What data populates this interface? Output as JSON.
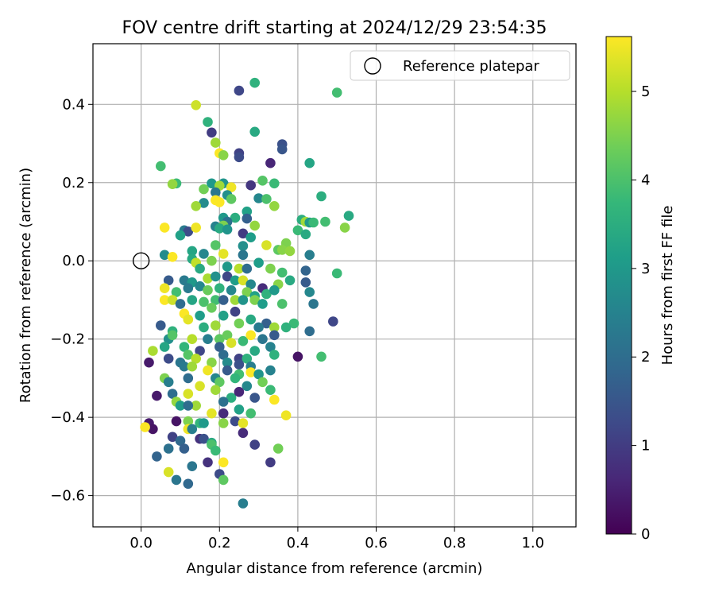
{
  "chart_data": {
    "type": "scatter",
    "title": "FOV centre drift starting at 2024/12/29 23:54:35",
    "xlabel": "Angular distance from reference (arcmin)",
    "ylabel": "Rotation from reference (arcmin)",
    "xlim": [
      -0.123,
      1.11
    ],
    "ylim": [
      -0.68,
      0.555
    ],
    "x_ticks": [
      0.0,
      0.2,
      0.4,
      0.6,
      0.8,
      1.0
    ],
    "x_tick_labels": [
      "0.0",
      "0.2",
      "0.4",
      "0.6",
      "0.8",
      "1.0"
    ],
    "y_ticks": [
      0.4,
      0.2,
      0.0,
      -0.2,
      -0.4,
      -0.6
    ],
    "y_tick_labels": [
      "0.4",
      "0.2",
      "0.0",
      "−0.2",
      "−0.4",
      "−0.6"
    ],
    "grid": true,
    "legend": {
      "placement": "top-right",
      "entries": [
        "Reference platepar"
      ]
    },
    "reference_point": {
      "x": 0.0,
      "y": 0.0,
      "label": "Reference platepar"
    },
    "colorbar": {
      "label": "Hours from first FF file",
      "min": 0,
      "max": 5.62,
      "ticks": [
        0,
        1,
        2,
        3,
        4,
        5
      ],
      "tick_labels": [
        "0",
        "1",
        "2",
        "3",
        "4",
        "5"
      ],
      "colormap": "viridis"
    },
    "points": [
      [
        0.25,
        0.435,
        1.2
      ],
      [
        0.29,
        0.455,
        3.6
      ],
      [
        0.5,
        0.43,
        3.9
      ],
      [
        0.14,
        0.398,
        5.2
      ],
      [
        0.17,
        0.355,
        3.6
      ],
      [
        0.18,
        0.328,
        1.0
      ],
      [
        0.29,
        0.33,
        3.4
      ],
      [
        0.36,
        0.298,
        1.4
      ],
      [
        0.19,
        0.302,
        4.8
      ],
      [
        0.36,
        0.285,
        1.5
      ],
      [
        0.25,
        0.275,
        1.1
      ],
      [
        0.2,
        0.275,
        5.6
      ],
      [
        0.25,
        0.265,
        1.3
      ],
      [
        0.21,
        0.27,
        4.6
      ],
      [
        0.33,
        0.25,
        0.6
      ],
      [
        0.43,
        0.25,
        3.3
      ],
      [
        0.05,
        0.242,
        3.9
      ],
      [
        0.09,
        0.198,
        3.8
      ],
      [
        0.08,
        0.196,
        4.7
      ],
      [
        0.18,
        0.198,
        3.0
      ],
      [
        0.21,
        0.198,
        2.9
      ],
      [
        0.31,
        0.205,
        4.1
      ],
      [
        0.34,
        0.198,
        3.8
      ],
      [
        0.2,
        0.192,
        4.8
      ],
      [
        0.23,
        0.188,
        5.5
      ],
      [
        0.28,
        0.193,
        0.9
      ],
      [
        0.16,
        0.183,
        4.4
      ],
      [
        0.19,
        0.175,
        2.2
      ],
      [
        0.22,
        0.168,
        2.8
      ],
      [
        0.3,
        0.16,
        2.6
      ],
      [
        0.23,
        0.158,
        4.2
      ],
      [
        0.32,
        0.158,
        4.0
      ],
      [
        0.46,
        0.165,
        3.5
      ],
      [
        0.19,
        0.155,
        5.6
      ],
      [
        0.2,
        0.15,
        5.6
      ],
      [
        0.16,
        0.148,
        2.7
      ],
      [
        0.14,
        0.14,
        4.8
      ],
      [
        0.34,
        0.14,
        4.7
      ],
      [
        0.27,
        0.126,
        3.2
      ],
      [
        0.21,
        0.11,
        3.0
      ],
      [
        0.24,
        0.11,
        3.5
      ],
      [
        0.27,
        0.108,
        1.7
      ],
      [
        0.22,
        0.1,
        2.1
      ],
      [
        0.41,
        0.105,
        3.5
      ],
      [
        0.42,
        0.1,
        4.8
      ],
      [
        0.43,
        0.098,
        3.0
      ],
      [
        0.44,
        0.098,
        3.8
      ],
      [
        0.47,
        0.1,
        3.9
      ],
      [
        0.53,
        0.115,
        3.4
      ],
      [
        0.06,
        0.085,
        5.6
      ],
      [
        0.19,
        0.088,
        2.5
      ],
      [
        0.21,
        0.09,
        4.5
      ],
      [
        0.29,
        0.09,
        4.7
      ],
      [
        0.11,
        0.078,
        2.3
      ],
      [
        0.12,
        0.075,
        1.3
      ],
      [
        0.14,
        0.085,
        5.5
      ],
      [
        0.2,
        0.083,
        3.4
      ],
      [
        0.22,
        0.08,
        2.9
      ],
      [
        0.4,
        0.078,
        3.8
      ],
      [
        0.52,
        0.085,
        4.6
      ],
      [
        0.1,
        0.065,
        3.2
      ],
      [
        0.26,
        0.07,
        1.0
      ],
      [
        0.28,
        0.06,
        3.1
      ],
      [
        0.42,
        0.068,
        3.4
      ],
      [
        0.37,
        0.045,
        4.5
      ],
      [
        0.19,
        0.04,
        4.1
      ],
      [
        0.26,
        0.038,
        2.8
      ],
      [
        0.32,
        0.04,
        5.3
      ],
      [
        0.06,
        0.015,
        2.7
      ],
      [
        0.13,
        0.025,
        3.3
      ],
      [
        0.16,
        0.018,
        2.6
      ],
      [
        0.21,
        0.018,
        5.4
      ],
      [
        0.26,
        0.015,
        2.2
      ],
      [
        0.35,
        0.028,
        4.2
      ],
      [
        0.36,
        0.028,
        4.6
      ],
      [
        0.38,
        0.025,
        4.7
      ],
      [
        0.43,
        0.015,
        2.4
      ],
      [
        0.08,
        0.01,
        5.6
      ],
      [
        0.13,
        0.005,
        3.4
      ],
      [
        0.18,
        0.0,
        4.5
      ],
      [
        0.14,
        -0.005,
        5.1
      ],
      [
        0.3,
        -0.005,
        3.1
      ],
      [
        0.15,
        -0.02,
        3.4
      ],
      [
        0.22,
        -0.015,
        3.0
      ],
      [
        0.25,
        -0.02,
        5.0
      ],
      [
        0.27,
        -0.02,
        2.0
      ],
      [
        0.33,
        -0.02,
        4.5
      ],
      [
        0.36,
        -0.03,
        3.9
      ],
      [
        0.42,
        -0.025,
        1.8
      ],
      [
        0.5,
        -0.032,
        3.8
      ],
      [
        0.07,
        -0.05,
        1.6
      ],
      [
        0.11,
        -0.05,
        2.3
      ],
      [
        0.13,
        -0.055,
        3.0
      ],
      [
        0.17,
        -0.045,
        4.9
      ],
      [
        0.19,
        -0.04,
        2.8
      ],
      [
        0.22,
        -0.04,
        1.2
      ],
      [
        0.24,
        -0.05,
        3.1
      ],
      [
        0.26,
        -0.05,
        5.3
      ],
      [
        0.28,
        -0.06,
        2.6
      ],
      [
        0.31,
        -0.07,
        0.7
      ],
      [
        0.35,
        -0.06,
        4.6
      ],
      [
        0.38,
        -0.05,
        3.4
      ],
      [
        0.42,
        -0.055,
        1.6
      ],
      [
        0.06,
        -0.07,
        5.5
      ],
      [
        0.09,
        -0.08,
        3.9
      ],
      [
        0.12,
        -0.07,
        2.3
      ],
      [
        0.15,
        -0.065,
        2.6
      ],
      [
        0.17,
        -0.075,
        4.3
      ],
      [
        0.2,
        -0.07,
        3.6
      ],
      [
        0.23,
        -0.075,
        2.6
      ],
      [
        0.27,
        -0.08,
        4.5
      ],
      [
        0.29,
        -0.09,
        3.2
      ],
      [
        0.32,
        -0.085,
        3.6
      ],
      [
        0.34,
        -0.075,
        3.0
      ],
      [
        0.43,
        -0.08,
        2.6
      ],
      [
        0.06,
        -0.1,
        5.6
      ],
      [
        0.08,
        -0.1,
        5.2
      ],
      [
        0.1,
        -0.11,
        2.0
      ],
      [
        0.13,
        -0.1,
        3.3
      ],
      [
        0.16,
        -0.105,
        4.0
      ],
      [
        0.19,
        -0.1,
        3.9
      ],
      [
        0.21,
        -0.1,
        1.7
      ],
      [
        0.24,
        -0.1,
        4.8
      ],
      [
        0.26,
        -0.1,
        2.9
      ],
      [
        0.29,
        -0.1,
        4.5
      ],
      [
        0.31,
        -0.11,
        3.1
      ],
      [
        0.36,
        -0.11,
        4.0
      ],
      [
        0.44,
        -0.11,
        2.2
      ],
      [
        0.11,
        -0.135,
        5.6
      ],
      [
        0.12,
        -0.15,
        5.4
      ],
      [
        0.15,
        -0.14,
        3.1
      ],
      [
        0.18,
        -0.12,
        4.3
      ],
      [
        0.21,
        -0.14,
        3.2
      ],
      [
        0.24,
        -0.13,
        1.1
      ],
      [
        0.28,
        -0.15,
        3.4
      ],
      [
        0.32,
        -0.16,
        1.7
      ],
      [
        0.34,
        -0.17,
        4.8
      ],
      [
        0.39,
        -0.16,
        3.8
      ],
      [
        0.49,
        -0.155,
        1.2
      ],
      [
        0.05,
        -0.165,
        1.6
      ],
      [
        0.08,
        -0.18,
        3.6
      ],
      [
        0.16,
        -0.17,
        3.5
      ],
      [
        0.19,
        -0.165,
        4.8
      ],
      [
        0.25,
        -0.16,
        4.4
      ],
      [
        0.3,
        -0.17,
        2.3
      ],
      [
        0.37,
        -0.17,
        3.6
      ],
      [
        0.43,
        -0.18,
        2.0
      ],
      [
        0.07,
        -0.2,
        2.8
      ],
      [
        0.08,
        -0.19,
        4.1
      ],
      [
        0.13,
        -0.2,
        5.0
      ],
      [
        0.17,
        -0.2,
        2.4
      ],
      [
        0.2,
        -0.2,
        4.2
      ],
      [
        0.22,
        -0.19,
        4.3
      ],
      [
        0.26,
        -0.205,
        3.8
      ],
      [
        0.28,
        -0.19,
        5.6
      ],
      [
        0.31,
        -0.2,
        2.2
      ],
      [
        0.34,
        -0.19,
        1.6
      ],
      [
        0.06,
        -0.22,
        3.3
      ],
      [
        0.11,
        -0.22,
        3.7
      ],
      [
        0.15,
        -0.23,
        1.2
      ],
      [
        0.2,
        -0.22,
        1.7
      ],
      [
        0.23,
        -0.21,
        5.3
      ],
      [
        0.29,
        -0.23,
        3.4
      ],
      [
        0.33,
        -0.22,
        2.5
      ],
      [
        0.03,
        -0.23,
        4.9
      ],
      [
        0.12,
        -0.24,
        4.1
      ],
      [
        0.21,
        -0.24,
        2.0
      ],
      [
        0.25,
        -0.25,
        1.1
      ],
      [
        0.27,
        -0.25,
        3.6
      ],
      [
        0.34,
        -0.24,
        3.6
      ],
      [
        0.4,
        -0.245,
        0.3
      ],
      [
        0.46,
        -0.245,
        3.9
      ],
      [
        0.02,
        -0.26,
        0.4
      ],
      [
        0.07,
        -0.25,
        1.3
      ],
      [
        0.1,
        -0.26,
        2.2
      ],
      [
        0.14,
        -0.25,
        5.0
      ],
      [
        0.18,
        -0.26,
        4.6
      ],
      [
        0.22,
        -0.26,
        2.7
      ],
      [
        0.25,
        -0.265,
        1.4
      ],
      [
        0.28,
        -0.27,
        2.4
      ],
      [
        0.06,
        -0.3,
        4.5
      ],
      [
        0.11,
        -0.27,
        2.3
      ],
      [
        0.13,
        -0.27,
        4.8
      ],
      [
        0.17,
        -0.28,
        5.5
      ],
      [
        0.19,
        -0.3,
        2.6
      ],
      [
        0.22,
        -0.28,
        1.6
      ],
      [
        0.25,
        -0.29,
        3.9
      ],
      [
        0.28,
        -0.285,
        5.6
      ],
      [
        0.3,
        -0.29,
        2.9
      ],
      [
        0.33,
        -0.28,
        2.5
      ],
      [
        0.07,
        -0.31,
        2.4
      ],
      [
        0.12,
        -0.3,
        2.0
      ],
      [
        0.15,
        -0.32,
        5.3
      ],
      [
        0.2,
        -0.31,
        4.2
      ],
      [
        0.24,
        -0.3,
        3.7
      ],
      [
        0.27,
        -0.32,
        2.6
      ],
      [
        0.31,
        -0.31,
        4.4
      ],
      [
        0.04,
        -0.345,
        0.4
      ],
      [
        0.08,
        -0.34,
        2.0
      ],
      [
        0.12,
        -0.34,
        5.3
      ],
      [
        0.19,
        -0.33,
        4.8
      ],
      [
        0.23,
        -0.35,
        3.5
      ],
      [
        0.25,
        -0.335,
        0.6
      ],
      [
        0.29,
        -0.35,
        1.5
      ],
      [
        0.33,
        -0.33,
        3.8
      ],
      [
        0.34,
        -0.355,
        5.6
      ],
      [
        0.09,
        -0.36,
        4.7
      ],
      [
        0.14,
        -0.37,
        4.8
      ],
      [
        0.21,
        -0.36,
        2.1
      ],
      [
        0.1,
        -0.37,
        3.1
      ],
      [
        0.12,
        -0.37,
        2.0
      ],
      [
        0.18,
        -0.39,
        5.4
      ],
      [
        0.21,
        -0.39,
        0.7
      ],
      [
        0.25,
        -0.38,
        3.2
      ],
      [
        0.28,
        -0.39,
        3.9
      ],
      [
        0.37,
        -0.395,
        5.5
      ],
      [
        0.02,
        -0.415,
        0.4
      ],
      [
        0.09,
        -0.41,
        0.3
      ],
      [
        0.12,
        -0.41,
        4.5
      ],
      [
        0.15,
        -0.415,
        3.7
      ],
      [
        0.16,
        -0.415,
        3.0
      ],
      [
        0.21,
        -0.415,
        4.6
      ],
      [
        0.24,
        -0.41,
        1.3
      ],
      [
        0.26,
        -0.415,
        5.4
      ],
      [
        0.03,
        -0.43,
        0.3
      ],
      [
        0.01,
        -0.425,
        5.6
      ],
      [
        0.12,
        -0.43,
        5.5
      ],
      [
        0.13,
        -0.43,
        2.4
      ],
      [
        0.08,
        -0.45,
        1.1
      ],
      [
        0.15,
        -0.455,
        0.8
      ],
      [
        0.16,
        -0.455,
        1.4
      ],
      [
        0.26,
        -0.44,
        0.7
      ],
      [
        0.1,
        -0.46,
        1.9
      ],
      [
        0.18,
        -0.465,
        3.4
      ],
      [
        0.18,
        -0.47,
        4.0
      ],
      [
        0.29,
        -0.47,
        1.1
      ],
      [
        0.07,
        -0.48,
        2.1
      ],
      [
        0.11,
        -0.48,
        1.7
      ],
      [
        0.19,
        -0.485,
        3.8
      ],
      [
        0.35,
        -0.48,
        4.4
      ],
      [
        0.04,
        -0.5,
        1.8
      ],
      [
        0.17,
        -0.515,
        0.8
      ],
      [
        0.21,
        -0.515,
        5.6
      ],
      [
        0.33,
        -0.515,
        1.0
      ],
      [
        0.13,
        -0.525,
        2.2
      ],
      [
        0.07,
        -0.54,
        5.3
      ],
      [
        0.2,
        -0.545,
        1.3
      ],
      [
        0.09,
        -0.56,
        2.2
      ],
      [
        0.21,
        -0.56,
        4.2
      ],
      [
        0.12,
        -0.57,
        1.9
      ],
      [
        0.26,
        -0.62,
        2.4
      ]
    ]
  }
}
